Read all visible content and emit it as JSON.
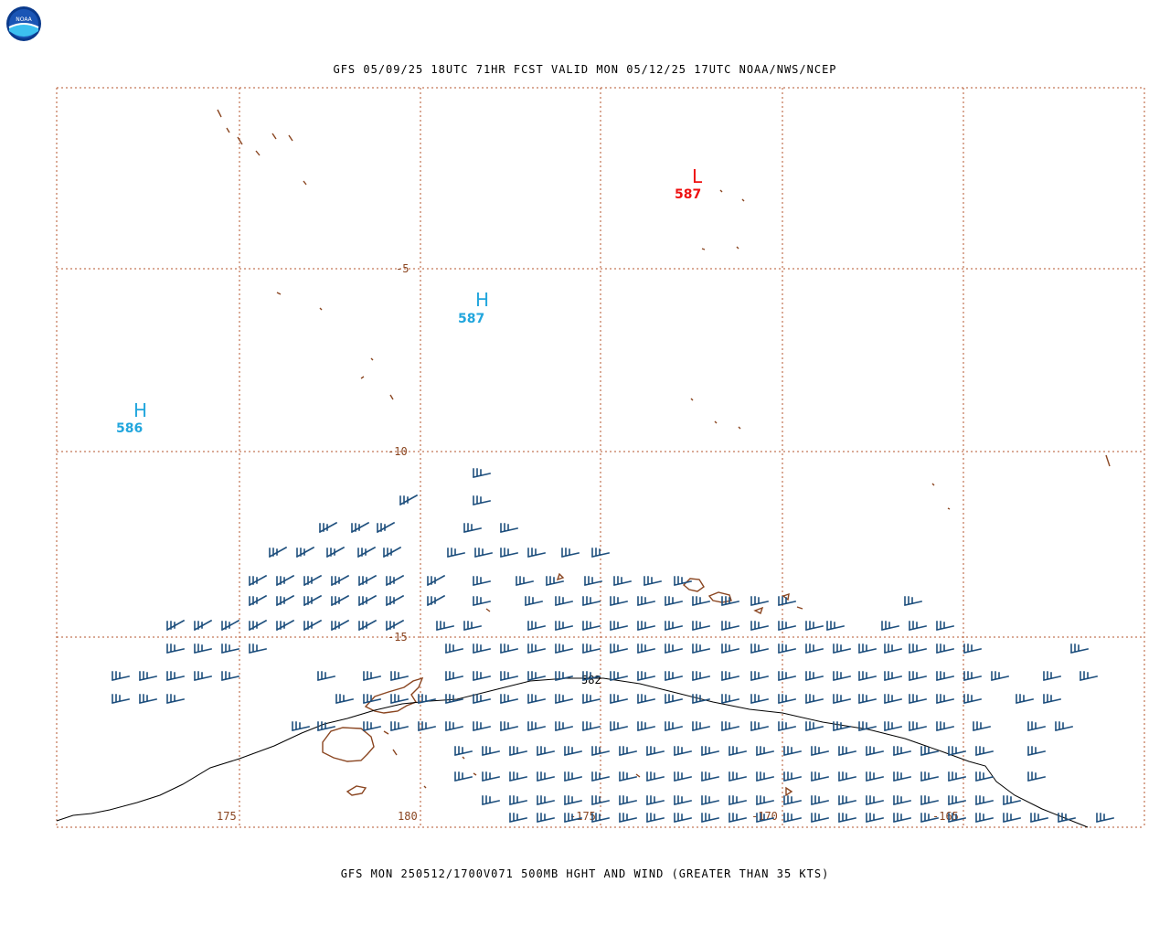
{
  "header": {
    "logo_text": "NOAA",
    "title": "GFS 05/09/25 18UTC 71HR FCST VALID MON 05/12/25 17UTC NOAA/NWS/NCEP"
  },
  "footer": {
    "caption": "GFS MON 250512/1700V071 500MB HGHT AND WIND (GREATER THAN 35 KTS)"
  },
  "map": {
    "latitude_labels": [
      "-5",
      "-10",
      "-15"
    ],
    "longitude_labels": [
      "175",
      "180",
      "-175",
      "-170",
      "-165"
    ],
    "contour_label": "582",
    "pressure_centers": [
      {
        "type": "H",
        "value": "586"
      },
      {
        "type": "H",
        "value": "587"
      },
      {
        "type": "L",
        "value": "587"
      }
    ],
    "colors": {
      "grid": "#b5562e",
      "coastline": "#8a4520",
      "wind_barb": "#1e4f7d",
      "high": "#22a6dd",
      "low": "#ee1111",
      "contour": "#000000"
    }
  }
}
